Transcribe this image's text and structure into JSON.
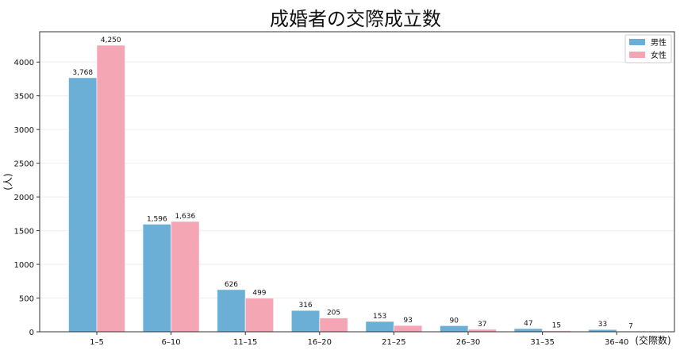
{
  "chart_data": {
    "type": "bar",
    "title": "成婚者の交際成立数",
    "xlabel": "(交際数)",
    "ylabel": "(人)",
    "categories": [
      "1–5",
      "6–10",
      "11–15",
      "16–20",
      "21–25",
      "26–30",
      "31–35",
      "36–40"
    ],
    "series": [
      {
        "name": "男性",
        "color": "#6baed6",
        "values": [
          3768,
          1596,
          626,
          316,
          153,
          90,
          47,
          33
        ],
        "labels": [
          "3,768",
          "1,596",
          "626",
          "316",
          "153",
          "90",
          "47",
          "33"
        ]
      },
      {
        "name": "女性",
        "color": "#f4a6b4",
        "values": [
          4250,
          1636,
          499,
          205,
          93,
          37,
          15,
          7
        ],
        "labels": [
          "4,250",
          "1,636",
          "499",
          "205",
          "93",
          "37",
          "15",
          "7"
        ]
      }
    ],
    "ylim": [
      0,
      4450
    ],
    "yticks": [
      0,
      500,
      1000,
      1500,
      2000,
      2500,
      3000,
      3500,
      4000
    ],
    "grid": "horizontal",
    "legend": "top-right"
  }
}
